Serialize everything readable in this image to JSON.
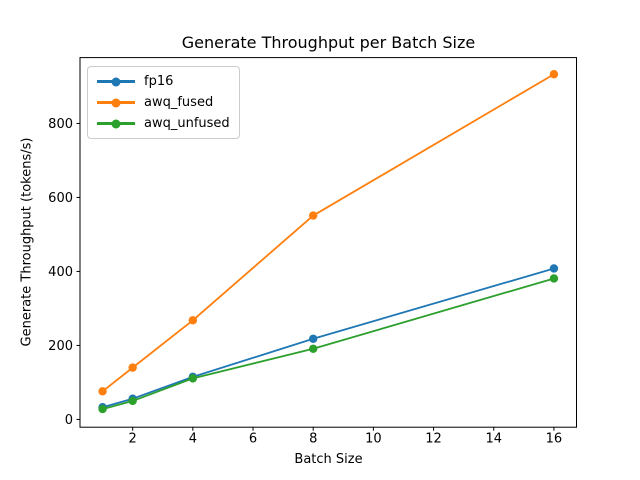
{
  "chart_data": {
    "type": "line",
    "title": "Generate Throughput per Batch Size",
    "xlabel": "Batch Size",
    "ylabel": "Generate Throughput (tokens/s)",
    "x": [
      1,
      2,
      4,
      8,
      16
    ],
    "series": [
      {
        "name": "fp16",
        "color": "#1f77b4",
        "values": [
          33,
          56,
          115,
          218,
          408
        ]
      },
      {
        "name": "awq_fused",
        "color": "#ff7f0e",
        "values": [
          76,
          140,
          268,
          551,
          933
        ]
      },
      {
        "name": "awq_unfused",
        "color": "#2ca02c",
        "values": [
          28,
          50,
          111,
          191,
          381
        ]
      }
    ],
    "xticks": [
      2,
      4,
      6,
      8,
      10,
      12,
      14,
      16
    ],
    "yticks": [
      0,
      200,
      400,
      600,
      800
    ],
    "xlim": [
      0.25,
      16.75
    ],
    "ylim": [
      -21,
      978
    ],
    "grid": false,
    "legend_position": "upper left",
    "marker": "circle",
    "axis_color": "#000000",
    "background_color": "#ffffff"
  }
}
